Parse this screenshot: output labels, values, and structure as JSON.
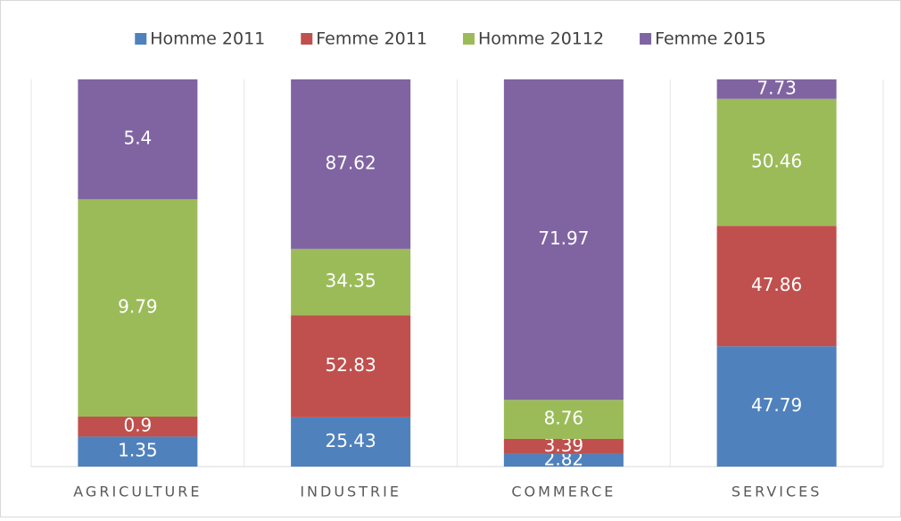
{
  "chart_data": {
    "type": "bar",
    "stacking": "percent",
    "categories": [
      "AGRICULTURE",
      "INDUSTRIE",
      "COMMERCE",
      "SERVICES"
    ],
    "series": [
      {
        "name": "Homme 2011",
        "color": "#4f81bd",
        "values": [
          1.35,
          25.43,
          2.82,
          47.79
        ]
      },
      {
        "name": "Femme 2011",
        "color": "#c0504d",
        "values": [
          0.9,
          52.83,
          3.39,
          47.86
        ]
      },
      {
        "name": "Homme 20112",
        "color": "#9bbb59",
        "values": [
          9.79,
          34.35,
          8.76,
          50.46
        ]
      },
      {
        "name": "Femme 2015",
        "color": "#8064a2",
        "values": [
          5.4,
          87.62,
          71.97,
          7.73
        ]
      }
    ],
    "legend": "top",
    "data_labels": true
  }
}
